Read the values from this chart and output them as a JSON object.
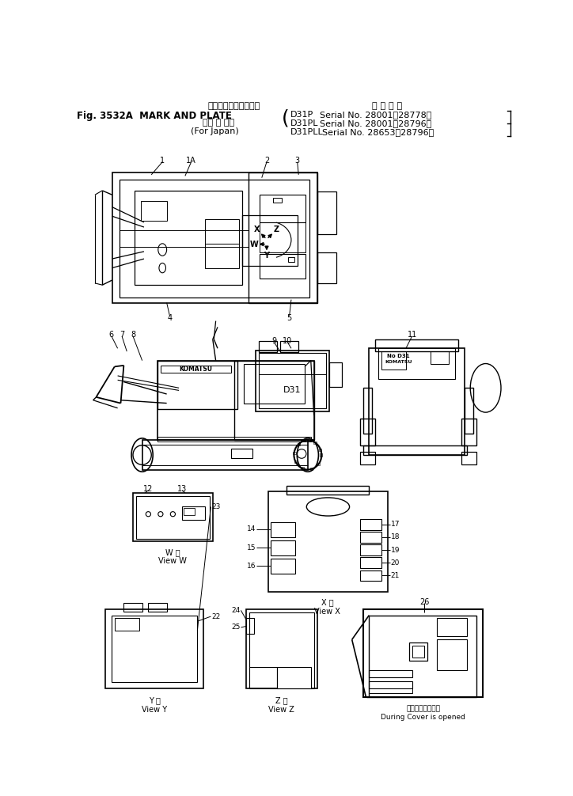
{
  "bg_color": "#ffffff",
  "line_color": "#000000",
  "header": {
    "jp_title": "マークおよびプレート",
    "fig_text": "Fig. 3532A  MARK AND PLATE",
    "paren1": "（国 内 向）",
    "paren2": "(For Japan)",
    "app_title": "適 用 号 機",
    "serial1_model": "D31P",
    "serial1_no": "Serial No. 28001～28778）",
    "serial2_model": "D31PL",
    "serial2_no": "Serial No. 28001～28796）",
    "serial3_model": "D31PLL",
    "serial3_no": "Serial No. 28653～28796）"
  },
  "view_labels": {
    "W": "W 視\nView W",
    "X": "X 視\nView X",
    "Y": "Y 視\nView Y",
    "Z": "Z 視\nView Z",
    "cover": "点検カバー開放時\nDuring Cover is opened"
  }
}
